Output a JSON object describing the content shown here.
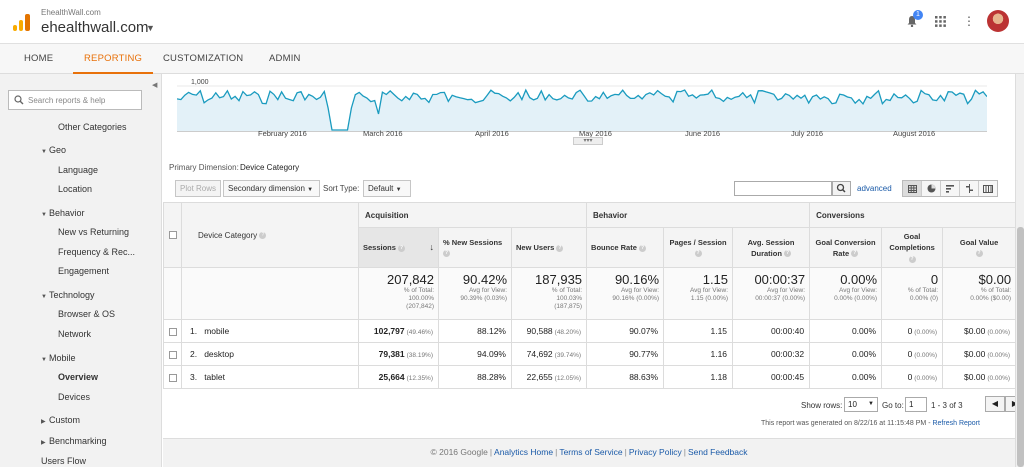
{
  "header": {
    "site_small": "EhealthWall.com",
    "site_main": "ehealthwall.com",
    "notification_count": "1"
  },
  "nav": {
    "tabs": [
      "HOME",
      "REPORTING",
      "CUSTOMIZATION",
      "ADMIN"
    ],
    "active": "REPORTING"
  },
  "sidebar": {
    "search_placeholder": "Search reports & help",
    "items": {
      "other_categories": "Other Categories",
      "geo": "Geo",
      "language": "Language",
      "location": "Location",
      "behavior": "Behavior",
      "new_vs_returning": "New vs Returning",
      "frequency": "Frequency & Rec...",
      "engagement": "Engagement",
      "technology": "Technology",
      "browser_os": "Browser & OS",
      "network": "Network",
      "mobile": "Mobile",
      "overview": "Overview",
      "devices": "Devices",
      "custom": "Custom",
      "benchmarking": "Benchmarking",
      "users_flow": "Users Flow"
    }
  },
  "chart": {
    "y_tick": "1,000",
    "months": [
      "February 2016",
      "March 2016",
      "April 2016",
      "May 2016",
      "June 2016",
      "July 2016",
      "August 2016"
    ],
    "line_color": "#1a9bbf"
  },
  "chart_data": {
    "type": "area",
    "ylabel": "",
    "y_ticks": [
      "1,000"
    ],
    "x_ticks": [
      "February 2016",
      "March 2016",
      "April 2016",
      "May 2016",
      "June 2016",
      "July 2016",
      "August 2016"
    ]
  },
  "controls": {
    "primary_dimension_label": "Primary Dimension:",
    "primary_dimension_value": "Device Category",
    "plot_rows": "Plot Rows",
    "secondary_dimension": "Secondary dimension",
    "sort_type_label": "Sort Type:",
    "sort_type_value": "Default",
    "advanced": "advanced"
  },
  "table": {
    "dimension_header": "Device Category",
    "groups": {
      "acquisition": "Acquisition",
      "behavior": "Behavior",
      "conversions": "Conversions"
    },
    "headers": {
      "sessions": "Sessions",
      "new_sessions": "% New Sessions",
      "new_users": "New Users",
      "bounce_rate": "Bounce Rate",
      "pages_session": "Pages / Session",
      "avg_session": "Avg. Session Duration",
      "goal_conv": "Goal Conversion Rate",
      "goal_comp": "Goal Completions",
      "goal_value": "Goal Value"
    },
    "totals": {
      "sessions": "207,842",
      "sessions_sub1": "% of Total:",
      "sessions_sub2": "100.00%",
      "sessions_sub3": "(207,842)",
      "new_sessions": "90.42%",
      "new_sessions_sub1": "Avg for View:",
      "new_sessions_sub2": "90.39% (0.03%)",
      "new_users": "187,935",
      "new_users_sub1": "% of Total:",
      "new_users_sub2": "100.03%",
      "new_users_sub3": "(187,875)",
      "bounce_rate": "90.16%",
      "bounce_rate_sub1": "Avg for View:",
      "bounce_rate_sub2": "90.16% (0.00%)",
      "pages_session": "1.15",
      "pages_session_sub1": "Avg for View:",
      "pages_session_sub2": "1.15 (0.00%)",
      "avg_session": "00:00:37",
      "avg_session_sub1": "Avg for View:",
      "avg_session_sub2": "00:00:37 (0.00%)",
      "goal_conv": "0.00%",
      "goal_conv_sub1": "Avg for View:",
      "goal_conv_sub2": "0.00% (0.00%)",
      "goal_comp": "0",
      "goal_comp_sub1": "% of Total:",
      "goal_comp_sub2": "0.00% (0)",
      "goal_value": "$0.00",
      "goal_value_sub1": "% of Total:",
      "goal_value_sub2": "0.00% ($0.00)"
    },
    "rows": [
      {
        "idx": "1.",
        "device": "mobile",
        "sessions": "102,797",
        "sessions_pct": "(49.46%)",
        "new_sessions": "88.12%",
        "new_users": "90,588",
        "new_users_pct": "(48.20%)",
        "bounce": "90.07%",
        "pages": "1.15",
        "duration": "00:00:40",
        "conv": "0.00%",
        "comp": "0",
        "comp_pct": "(0.00%)",
        "value": "$0.00",
        "value_pct": "(0.00%)"
      },
      {
        "idx": "2.",
        "device": "desktop",
        "sessions": "79,381",
        "sessions_pct": "(38.19%)",
        "new_sessions": "94.09%",
        "new_users": "74,692",
        "new_users_pct": "(39.74%)",
        "bounce": "90.77%",
        "pages": "1.16",
        "duration": "00:00:32",
        "conv": "0.00%",
        "comp": "0",
        "comp_pct": "(0.00%)",
        "value": "$0.00",
        "value_pct": "(0.00%)"
      },
      {
        "idx": "3.",
        "device": "tablet",
        "sessions": "25,664",
        "sessions_pct": "(12.35%)",
        "new_sessions": "88.28%",
        "new_users": "22,655",
        "new_users_pct": "(12.05%)",
        "bounce": "88.63%",
        "pages": "1.18",
        "duration": "00:00:45",
        "conv": "0.00%",
        "comp": "0",
        "comp_pct": "(0.00%)",
        "value": "$0.00",
        "value_pct": "(0.00%)"
      }
    ]
  },
  "pagination": {
    "show_rows_label": "Show rows:",
    "show_rows_value": "10",
    "goto_label": "Go to:",
    "goto_value": "1",
    "range": "1 - 3 of 3",
    "generated": "This report was generated on 8/22/16 at 11:15:48 PM -",
    "refresh": "Refresh Report"
  },
  "footer": {
    "copyright": "© 2016 Google",
    "links": [
      "Analytics Home",
      "Terms of Service",
      "Privacy Policy",
      "Send Feedback"
    ]
  }
}
